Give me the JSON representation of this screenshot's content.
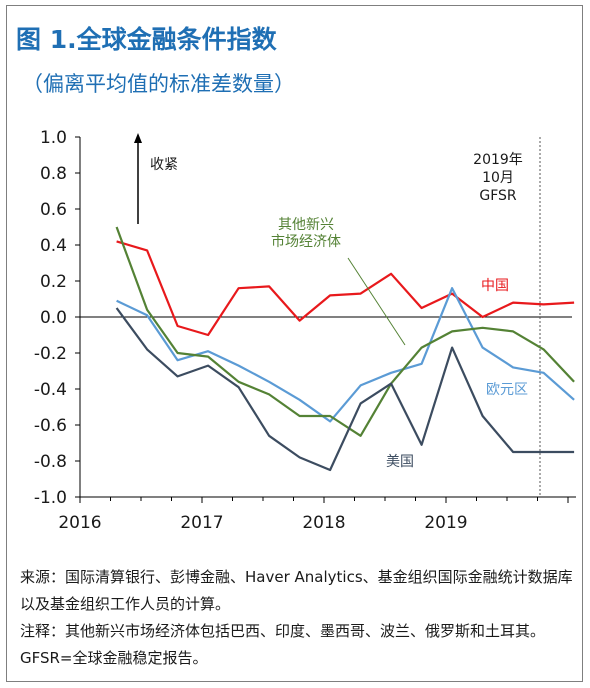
{
  "figure": {
    "title": "图 1.全球金融条件指数",
    "subtitle": "（偏离平均值的标准差数量）"
  },
  "chart_data": {
    "type": "line",
    "ylim": [
      -1.0,
      1.0
    ],
    "yticks": [
      "1.0",
      "0.8",
      "0.6",
      "0.4",
      "0.2",
      "0.0",
      "-0.2",
      "-0.4",
      "-0.6",
      "-0.8",
      "-1.0"
    ],
    "xticks": [
      "2016",
      "2017",
      "2018",
      "2019"
    ],
    "x": [
      "2016Q2",
      "2016Q3",
      "2016Q4",
      "2017Q1",
      "2017Q2",
      "2017Q3",
      "2017Q4",
      "2018Q1",
      "2018Q2",
      "2018Q3",
      "2018Q4",
      "2019Q1",
      "2019Q2",
      "2019Q3",
      "2019Q4",
      "2020Q1"
    ],
    "grid": false,
    "series": [
      {
        "name": "中国",
        "color": "#e8191c",
        "values": [
          0.42,
          0.37,
          -0.05,
          -0.1,
          0.16,
          0.17,
          -0.02,
          0.12,
          0.13,
          0.24,
          0.05,
          0.13,
          0.0,
          0.08,
          0.07,
          0.08
        ]
      },
      {
        "name": "欧元区",
        "color": "#5b9bd5",
        "values": [
          0.09,
          0.01,
          -0.24,
          -0.19,
          -0.27,
          -0.36,
          -0.46,
          -0.58,
          -0.38,
          -0.31,
          -0.26,
          0.16,
          -0.17,
          -0.28,
          -0.31,
          -0.46
        ]
      },
      {
        "name": "其他新兴\n市场经济体",
        "color": "#548235",
        "values": [
          0.5,
          0.04,
          -0.2,
          -0.22,
          -0.36,
          -0.43,
          -0.55,
          -0.55,
          -0.66,
          -0.37,
          -0.17,
          -0.08,
          -0.06,
          -0.08,
          -0.18,
          -0.36
        ]
      },
      {
        "name": "美国",
        "color": "#3c4c60",
        "values": [
          0.05,
          -0.18,
          -0.33,
          -0.27,
          -0.39,
          -0.66,
          -0.78,
          -0.85,
          -0.48,
          -0.37,
          -0.71,
          -0.17,
          -0.55,
          -0.75,
          -0.75,
          -0.75
        ]
      }
    ],
    "annotations": {
      "tighten": "收紧",
      "gfsr": [
        "2019年",
        "10月",
        "GFSR"
      ]
    }
  },
  "notes": {
    "source": "来源：国际清算银行、彭博金融、Haver Analytics、基金组织国际金融统计数据库以及基金组织工作人员的计算。",
    "note": "注释：其他新兴市场经济体包括巴西、印度、墨西哥、波兰、俄罗斯和土耳其。GFSR=全球金融稳定报告。"
  }
}
